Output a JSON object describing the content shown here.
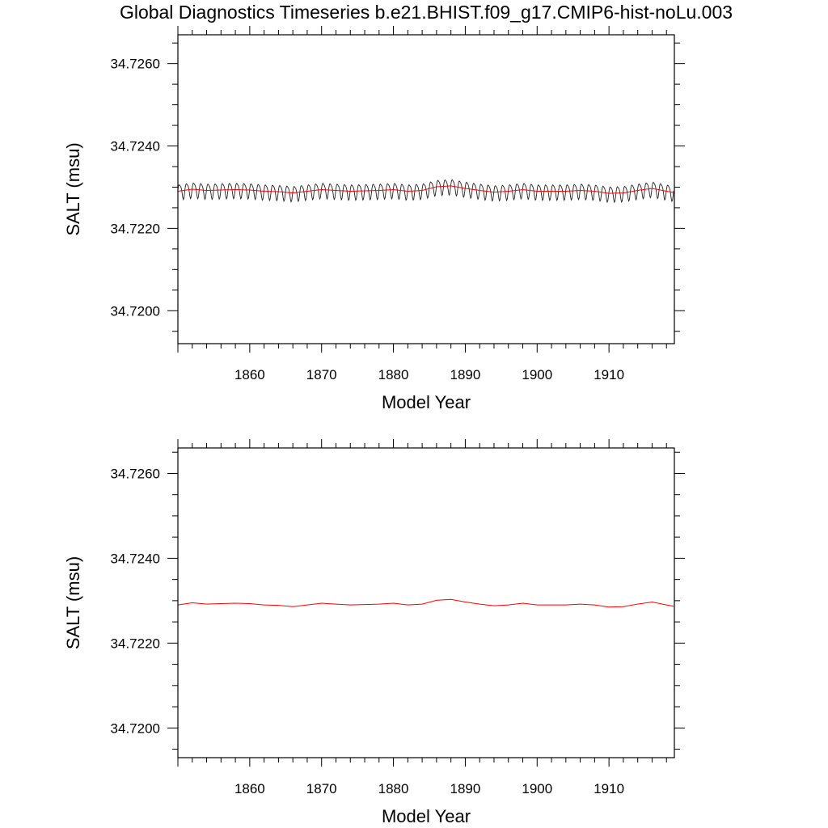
{
  "title": "Global Diagnostics Timeseries b.e21.BHIST.f09_g17.CMIP6-hist-noLu.003",
  "colors": {
    "raw": "#222222",
    "smoothed": "#ff0000",
    "frame": "#000000"
  },
  "chart_data": [
    {
      "type": "line",
      "xlabel": "Model Year",
      "ylabel": "SALT (msu)",
      "xlim": [
        1850.0,
        1919.1
      ],
      "ylim": [
        34.7192,
        34.7267
      ],
      "xticks": [
        "1860",
        "1870",
        "1880",
        "1890",
        "1900",
        "1910"
      ],
      "yticks": [
        "34.7200",
        "34.7220",
        "34.7240",
        "34.7260"
      ],
      "series": [
        {
          "style": "monthly",
          "seasonal_amplitude": 0.00018,
          "x": [
            1850,
            1852,
            1854,
            1856,
            1858,
            1860,
            1862,
            1864,
            1866,
            1868,
            1870,
            1872,
            1874,
            1876,
            1878,
            1880,
            1882,
            1884,
            1886,
            1888,
            1890,
            1892,
            1894,
            1896,
            1898,
            1900,
            1902,
            1904,
            1906,
            1908,
            1910,
            1912,
            1914,
            1916,
            1918,
            1919
          ],
          "y": [
            34.7229,
            34.72295,
            34.72292,
            34.72293,
            34.72294,
            34.72293,
            34.7229,
            34.72289,
            34.72286,
            34.7229,
            34.72294,
            34.72292,
            34.7229,
            34.72291,
            34.72292,
            34.72294,
            34.7229,
            34.72292,
            34.72301,
            34.72303,
            34.72297,
            34.72292,
            34.72288,
            34.7229,
            34.72294,
            34.7229,
            34.7229,
            34.7229,
            34.72292,
            34.7229,
            34.72285,
            34.72286,
            34.72292,
            34.72297,
            34.7229,
            34.72287
          ]
        },
        {
          "style": "smoothed",
          "x": [
            1850,
            1852,
            1854,
            1856,
            1858,
            1860,
            1862,
            1864,
            1866,
            1868,
            1870,
            1872,
            1874,
            1876,
            1878,
            1880,
            1882,
            1884,
            1886,
            1888,
            1890,
            1892,
            1894,
            1896,
            1898,
            1900,
            1902,
            1904,
            1906,
            1908,
            1910,
            1912,
            1914,
            1916,
            1918,
            1919
          ],
          "y": [
            34.7229,
            34.72295,
            34.72292,
            34.72293,
            34.72294,
            34.72293,
            34.7229,
            34.72289,
            34.72286,
            34.7229,
            34.72294,
            34.72292,
            34.7229,
            34.72291,
            34.72292,
            34.72294,
            34.7229,
            34.72292,
            34.72301,
            34.72303,
            34.72297,
            34.72292,
            34.72288,
            34.7229,
            34.72294,
            34.7229,
            34.7229,
            34.7229,
            34.72292,
            34.7229,
            34.72285,
            34.72286,
            34.72292,
            34.72297,
            34.7229,
            34.72287
          ]
        }
      ]
    },
    {
      "type": "line",
      "xlabel": "Model Year",
      "ylabel": "SALT (msu)",
      "xlim": [
        1850.0,
        1919.1
      ],
      "ylim": [
        34.7193,
        34.7266
      ],
      "xticks": [
        "1860",
        "1870",
        "1880",
        "1890",
        "1900",
        "1910"
      ],
      "yticks": [
        "34.7200",
        "34.7220",
        "34.7240",
        "34.7260"
      ],
      "series": [
        {
          "style": "smoothed",
          "x": [
            1850,
            1852,
            1854,
            1856,
            1858,
            1860,
            1862,
            1864,
            1866,
            1868,
            1870,
            1872,
            1874,
            1876,
            1878,
            1880,
            1882,
            1884,
            1886,
            1888,
            1890,
            1892,
            1894,
            1896,
            1898,
            1900,
            1902,
            1904,
            1906,
            1908,
            1910,
            1912,
            1914,
            1916,
            1918,
            1919
          ],
          "y": [
            34.7229,
            34.72295,
            34.72292,
            34.72293,
            34.72294,
            34.72293,
            34.7229,
            34.72289,
            34.72286,
            34.7229,
            34.72294,
            34.72292,
            34.7229,
            34.72291,
            34.72292,
            34.72294,
            34.7229,
            34.72292,
            34.72301,
            34.72303,
            34.72297,
            34.72292,
            34.72288,
            34.7229,
            34.72294,
            34.7229,
            34.7229,
            34.7229,
            34.72292,
            34.7229,
            34.72285,
            34.72286,
            34.72292,
            34.72297,
            34.7229,
            34.72287
          ]
        }
      ]
    }
  ]
}
